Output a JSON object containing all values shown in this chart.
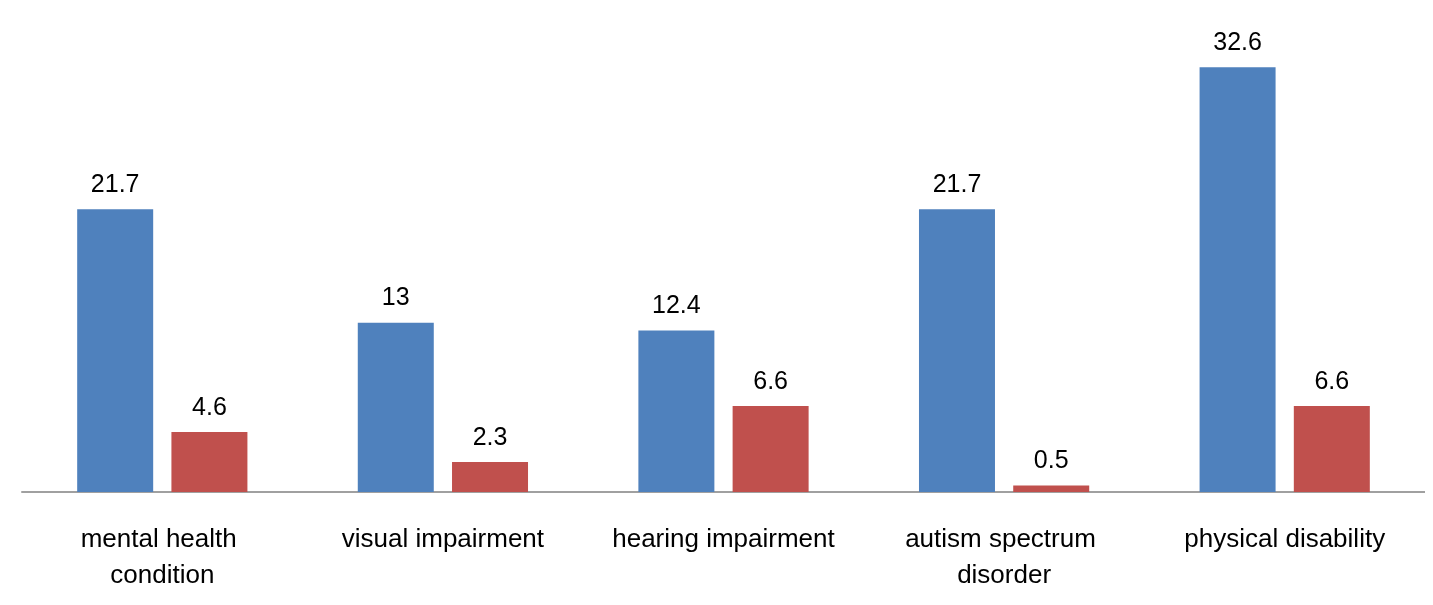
{
  "chart_data": {
    "type": "bar",
    "categories": [
      "mental health condition",
      "visual impairment",
      "hearing impairment",
      "autism spectrum disorder",
      "physical disability"
    ],
    "series": [
      {
        "color": "#4f81bd",
        "values": [
          21.7,
          13,
          12.4,
          21.7,
          32.6
        ]
      },
      {
        "color": "#c0504d",
        "values": [
          4.6,
          2.3,
          6.6,
          0.5,
          6.6
        ]
      }
    ],
    "data_labels": true,
    "grid": false
  }
}
